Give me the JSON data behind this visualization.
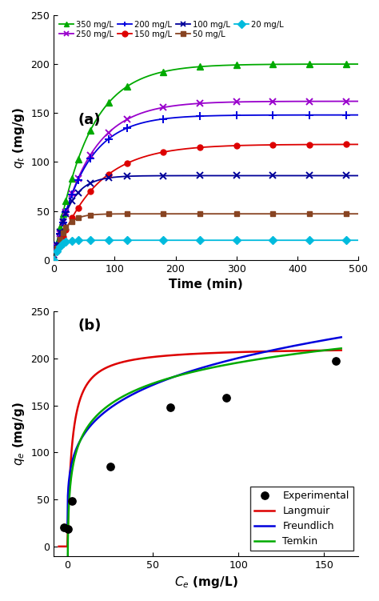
{
  "panel_a": {
    "title": "(a)",
    "xlabel": "Time (min)",
    "ylabel": "$q_t$ (mg/g)",
    "xlim": [
      0,
      500
    ],
    "ylim": [
      0,
      250
    ],
    "xticks": [
      0,
      100,
      200,
      300,
      400,
      500
    ],
    "yticks": [
      0,
      50,
      100,
      150,
      200,
      250
    ],
    "series": [
      {
        "label": "350 mg/L",
        "color": "#00aa00",
        "marker": "^",
        "q_max": 200,
        "k": 0.018,
        "t_points": [
          0,
          5,
          10,
          15,
          20,
          30,
          40,
          60,
          90,
          120,
          180,
          240,
          300,
          360,
          420,
          480
        ]
      },
      {
        "label": "250 mg/L",
        "color": "#9900cc",
        "marker": "x",
        "q_max": 162,
        "k": 0.018,
        "t_points": [
          0,
          5,
          10,
          15,
          20,
          30,
          40,
          60,
          90,
          120,
          180,
          240,
          300,
          360,
          420,
          480
        ]
      },
      {
        "label": "200 mg/L",
        "color": "#0000dd",
        "marker": "+",
        "q_max": 148,
        "k": 0.02,
        "t_points": [
          0,
          5,
          10,
          15,
          20,
          30,
          40,
          60,
          90,
          120,
          180,
          240,
          300,
          360,
          420,
          480
        ]
      },
      {
        "label": "150 mg/L",
        "color": "#dd0000",
        "marker": "o",
        "q_max": 118,
        "k": 0.015,
        "t_points": [
          0,
          5,
          10,
          15,
          20,
          30,
          40,
          60,
          90,
          120,
          180,
          240,
          300,
          360,
          420,
          480
        ]
      },
      {
        "label": "100 mg/L",
        "color": "#000099",
        "marker": "x",
        "q_max": 86,
        "k": 0.04,
        "t_points": [
          0,
          5,
          10,
          15,
          20,
          30,
          40,
          60,
          90,
          120,
          180,
          240,
          300,
          360,
          420,
          480
        ]
      },
      {
        "label": "50 mg/L",
        "color": "#884422",
        "marker": "s",
        "q_max": 47,
        "k": 0.06,
        "t_points": [
          0,
          5,
          10,
          15,
          20,
          30,
          40,
          60,
          90,
          120,
          180,
          240,
          300,
          360,
          420,
          480
        ]
      },
      {
        "label": "20 mg/L",
        "color": "#00bbdd",
        "marker": "D",
        "q_max": 20,
        "k": 0.12,
        "t_points": [
          0,
          5,
          10,
          15,
          20,
          30,
          40,
          60,
          90,
          120,
          180,
          240,
          300,
          360,
          420,
          480
        ]
      }
    ]
  },
  "panel_b": {
    "title": "(b)",
    "xlabel": "$C_e$ (mg/L)",
    "ylabel": "$q_e$ (mg/g)",
    "xlim": [
      -8,
      170
    ],
    "ylim": [
      -10,
      250
    ],
    "xticks": [
      0,
      50,
      100,
      150
    ],
    "yticks": [
      0,
      50,
      100,
      150,
      200,
      250
    ],
    "exp_x": [
      -2.0,
      0.5,
      2.5,
      25.0,
      60.0,
      93.0,
      157.0
    ],
    "exp_y": [
      20.0,
      19.0,
      48.0,
      85.0,
      148.0,
      158.0,
      197.0
    ],
    "langmuir": {
      "qmax": 212.0,
      "KL": 0.38,
      "color": "#dd0000"
    },
    "freundlich": {
      "KF": 72.0,
      "n": 4.5,
      "color": "#0000dd"
    },
    "temkin": {
      "AT": 4.5,
      "BT": 32.0,
      "color": "#00aa00"
    }
  }
}
